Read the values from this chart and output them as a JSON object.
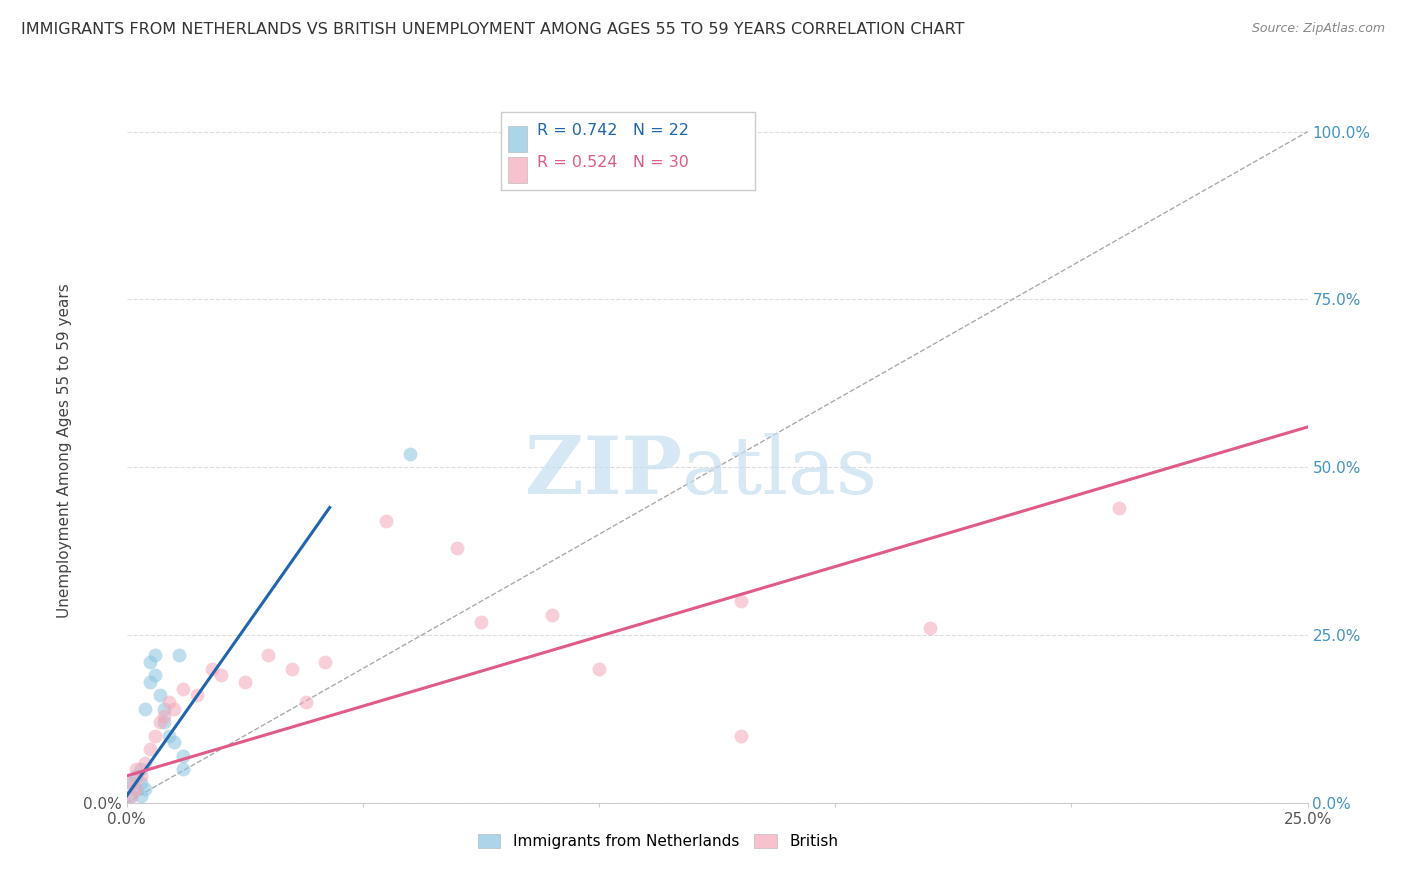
{
  "title": "IMMIGRANTS FROM NETHERLANDS VS BRITISH UNEMPLOYMENT AMONG AGES 55 TO 59 YEARS CORRELATION CHART",
  "source": "Source: ZipAtlas.com",
  "ylabel": "Unemployment Among Ages 55 to 59 years",
  "xlim": [
    0,
    0.25
  ],
  "ylim": [
    0,
    1.05
  ],
  "xticks": [
    0.0,
    0.05,
    0.1,
    0.15,
    0.2,
    0.25
  ],
  "yticks": [
    0.0,
    0.25,
    0.5,
    0.75,
    1.0
  ],
  "ytick_labels": [
    "0.0%",
    "25.0%",
    "50.0%",
    "75.0%",
    "100.0%"
  ],
  "xtick_labels": [
    "0.0%",
    "",
    "",
    "",
    "",
    "25.0%"
  ],
  "background_color": "#ffffff",
  "grid_color": "#dddddd",
  "legend_r_blue": "R = 0.742",
  "legend_n_blue": "N = 22",
  "legend_r_pink": "R = 0.524",
  "legend_n_pink": "N = 30",
  "blue_scatter_color": "#89c4e1",
  "pink_scatter_color": "#f4a7b9",
  "blue_line_color": "#2166ac",
  "pink_line_color": "#e05a8a",
  "diag_line_color": "#aaaaaa",
  "title_fontsize": 11.5,
  "axis_label_fontsize": 11,
  "tick_fontsize": 11,
  "right_tick_color": "#4393c3",
  "netherlands_scatter_x": [
    0.001,
    0.001,
    0.002,
    0.002,
    0.003,
    0.003,
    0.003,
    0.004,
    0.004,
    0.005,
    0.005,
    0.006,
    0.006,
    0.007,
    0.008,
    0.008,
    0.009,
    0.01,
    0.011,
    0.012,
    0.012,
    0.06
  ],
  "netherlands_scatter_y": [
    0.01,
    0.03,
    0.02,
    0.04,
    0.01,
    0.03,
    0.05,
    0.02,
    0.14,
    0.18,
    0.21,
    0.19,
    0.22,
    0.16,
    0.14,
    0.12,
    0.1,
    0.09,
    0.22,
    0.05,
    0.07,
    0.52
  ],
  "british_scatter_x": [
    0.001,
    0.001,
    0.002,
    0.002,
    0.003,
    0.004,
    0.005,
    0.006,
    0.007,
    0.008,
    0.009,
    0.01,
    0.012,
    0.015,
    0.018,
    0.02,
    0.025,
    0.03,
    0.035,
    0.038,
    0.042,
    0.055,
    0.07,
    0.075,
    0.09,
    0.1,
    0.13,
    0.17,
    0.21,
    0.13
  ],
  "british_scatter_y": [
    0.01,
    0.03,
    0.02,
    0.05,
    0.04,
    0.06,
    0.08,
    0.1,
    0.12,
    0.13,
    0.15,
    0.14,
    0.17,
    0.16,
    0.2,
    0.19,
    0.18,
    0.22,
    0.2,
    0.15,
    0.21,
    0.42,
    0.38,
    0.27,
    0.28,
    0.2,
    0.3,
    0.26,
    0.44,
    0.1
  ],
  "blue_line_x": [
    0.0,
    0.043
  ],
  "blue_line_y": [
    0.01,
    0.44
  ],
  "pink_line_x": [
    0.0,
    0.25
  ],
  "pink_line_y": [
    0.04,
    0.56
  ],
  "diag_line_x": [
    0.0,
    0.25
  ],
  "diag_line_y": [
    0.0,
    1.0
  ]
}
